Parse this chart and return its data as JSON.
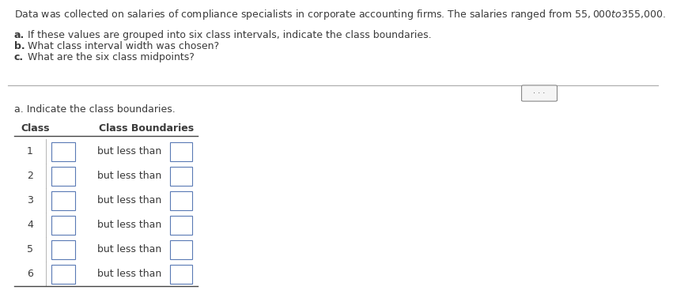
{
  "title_text": "Data was collected on salaries of compliance specialists in corporate accounting firms. The salaries ranged from $55,000 to $355,000.",
  "q_a": "a.",
  "q_a_rest": " If these values are grouped into six class intervals, indicate the class boundaries.",
  "q_b": "b.",
  "q_b_rest": " What class interval width was chosen?",
  "q_c": "c.",
  "q_c_rest": " What are the six class midpoints?",
  "section_label": "a. Indicate the class boundaries.",
  "col1_header": "Class",
  "col2_header": "Class Boundaries",
  "classes": [
    1,
    2,
    3,
    4,
    5,
    6
  ],
  "but_less_than_text": "but less than",
  "bg_color": "#ffffff",
  "text_color": "#3a3a3a",
  "title_fontsize": 9.0,
  "body_fontsize": 9.0,
  "table_fontsize": 9.0
}
